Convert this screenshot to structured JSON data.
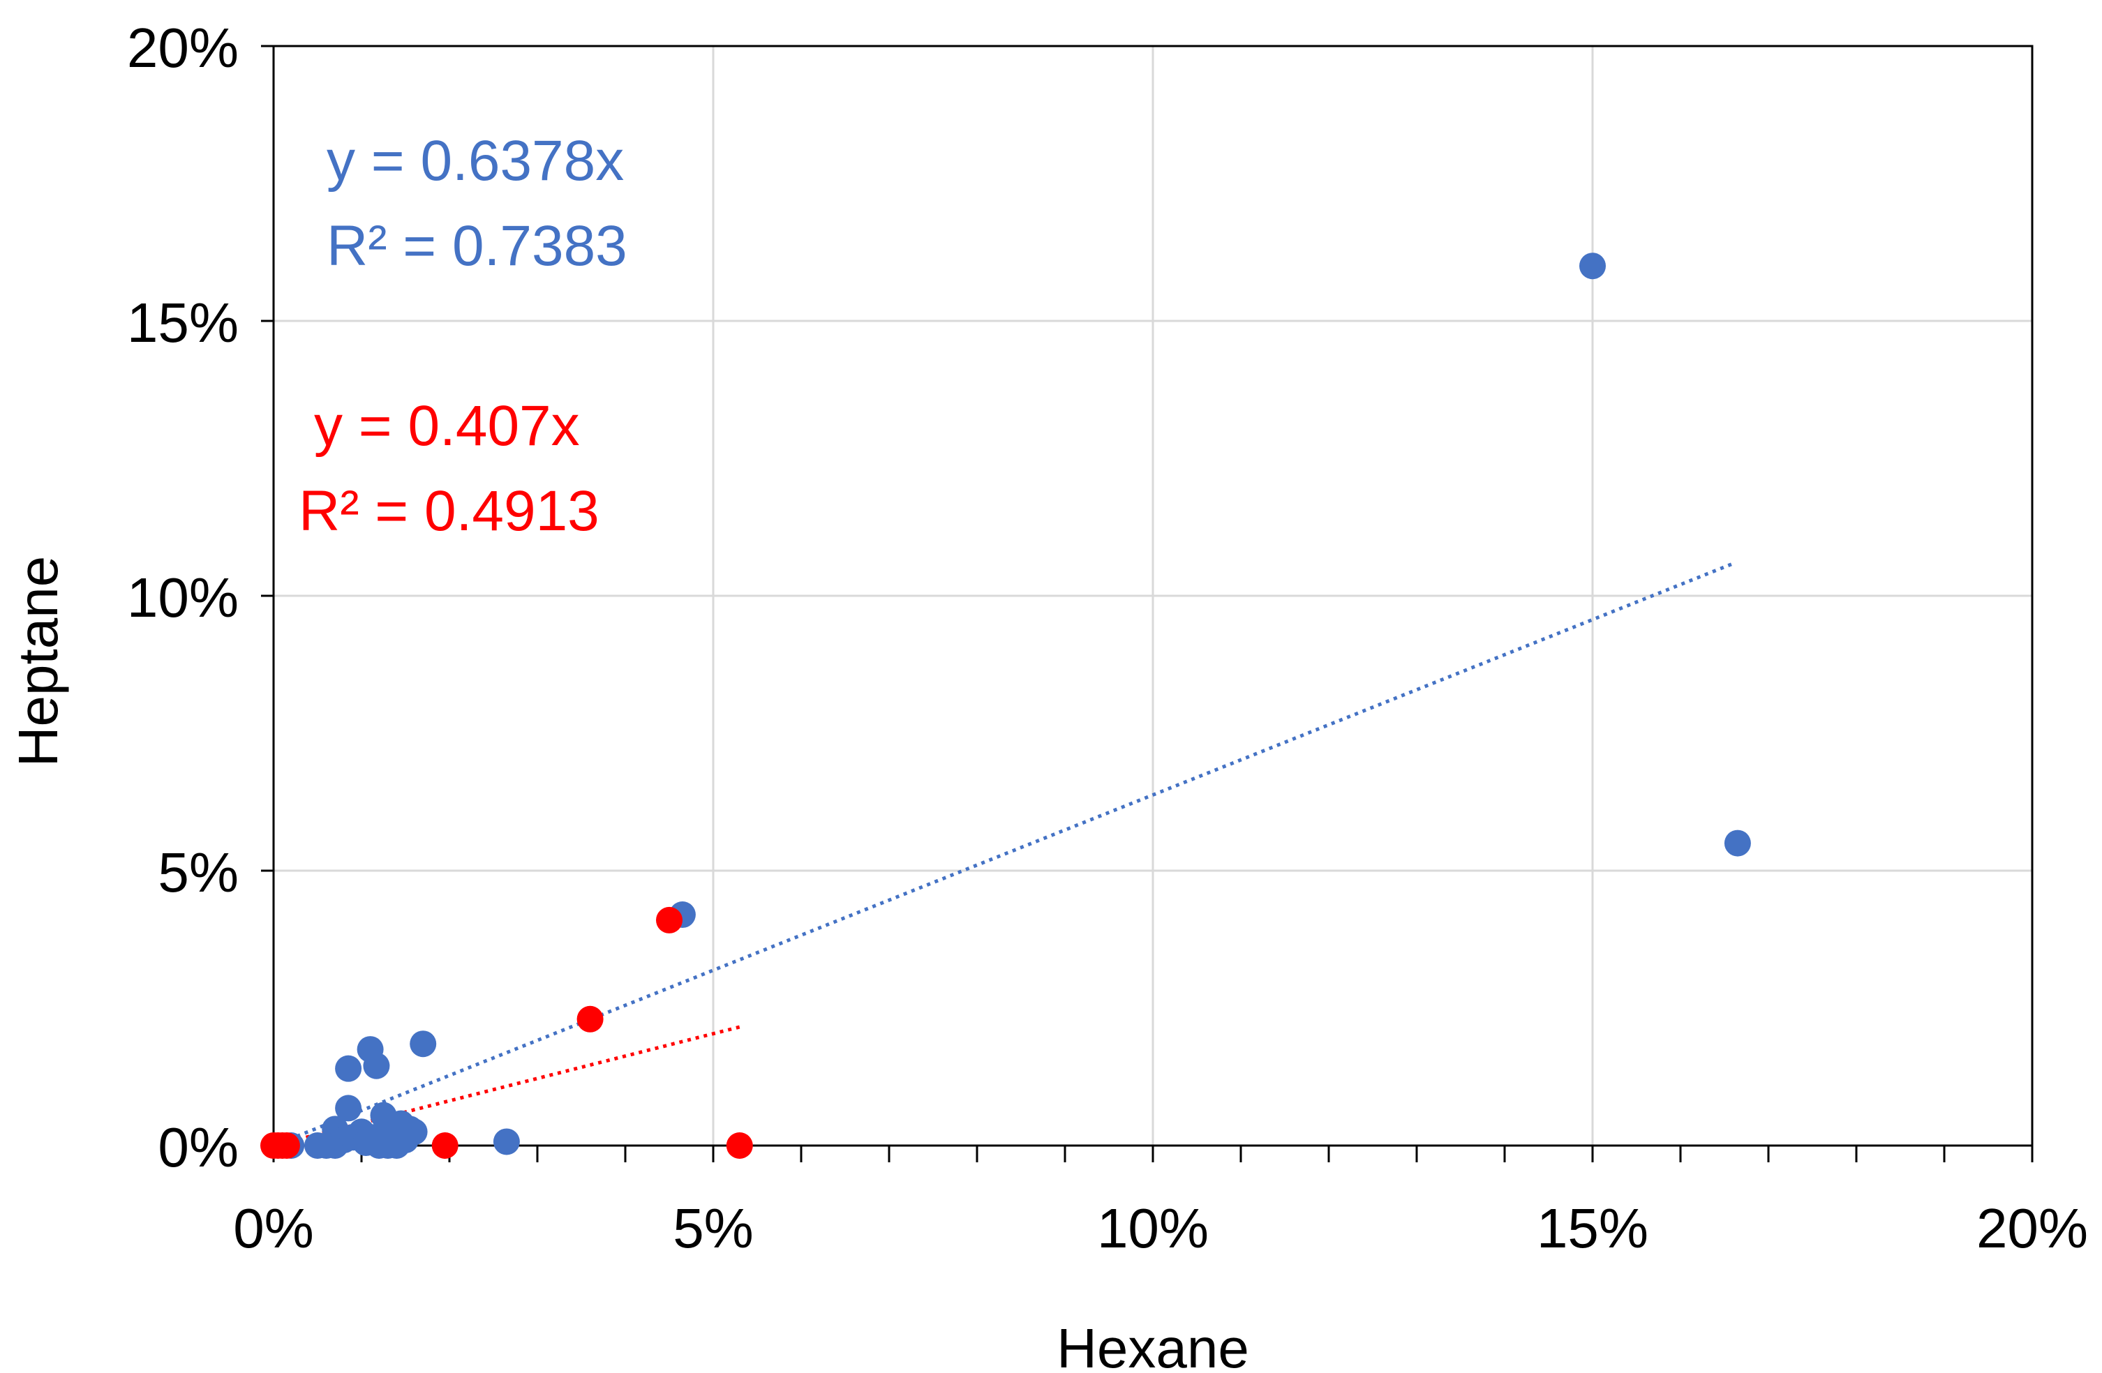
{
  "chart_data": {
    "type": "scatter",
    "title": "",
    "xlabel": "Hexane",
    "ylabel": "Heptane",
    "xlim": [
      0,
      0.2
    ],
    "ylim": [
      0,
      0.2
    ],
    "x_ticks": [
      0,
      0.05,
      0.1,
      0.15,
      0.2
    ],
    "x_tick_labels": [
      "0%",
      "5%",
      "10%",
      "15%",
      "20%"
    ],
    "y_ticks": [
      0,
      0.05,
      0.1,
      0.15,
      0.2
    ],
    "y_tick_labels": [
      "0%",
      "5%",
      "10%",
      "15%",
      "20%"
    ],
    "x_minor_step": 0.01,
    "grid": true,
    "series": [
      {
        "name": "blue",
        "color": "#4472C4",
        "trend_slope": 0.6378,
        "trend_x_range": [
          0,
          0.166
        ],
        "equation": "y = 0.6378x",
        "r_squared": "R² = 0.7383",
        "points": [
          [
            0.15,
            0.16
          ],
          [
            0.1665,
            0.055
          ],
          [
            0.0465,
            0.042
          ],
          [
            0.017,
            0.0185
          ],
          [
            0.011,
            0.0175
          ],
          [
            0.0085,
            0.014
          ],
          [
            0.0117,
            0.0145
          ],
          [
            0.0265,
            0.0007
          ],
          [
            0.0085,
            0.0068
          ],
          [
            0.0125,
            0.0055
          ],
          [
            0.0145,
            0.004
          ],
          [
            0.0155,
            0.003
          ],
          [
            0.016,
            0.0025
          ],
          [
            0.007,
            0.003
          ],
          [
            0.01,
            0.0025
          ],
          [
            0.005,
            0.0
          ],
          [
            0.006,
            0.0
          ],
          [
            0.007,
            0.0
          ],
          [
            0.008,
            0.001
          ],
          [
            0.009,
            0.0015
          ],
          [
            0.0105,
            0.0005
          ],
          [
            0.0115,
            0.0015
          ],
          [
            0.012,
            0.0
          ],
          [
            0.013,
            0.0
          ],
          [
            0.014,
            0.0
          ],
          [
            0.0135,
            0.002
          ],
          [
            0.015,
            0.001
          ],
          [
            0.002,
            0.0
          ]
        ]
      },
      {
        "name": "red",
        "color": "#FF0000",
        "trend_slope": 0.407,
        "trend_x_range": [
          0,
          0.053
        ],
        "equation": "y = 0.407x",
        "r_squared": "R² = 0.4913",
        "points": [
          [
            0.045,
            0.041
          ],
          [
            0.036,
            0.023
          ],
          [
            0.053,
            0.0
          ],
          [
            0.0195,
            0.0
          ],
          [
            0.0,
            0.0
          ],
          [
            0.0005,
            0.0
          ],
          [
            0.001,
            0.0
          ],
          [
            0.0015,
            0.0
          ]
        ]
      }
    ]
  }
}
